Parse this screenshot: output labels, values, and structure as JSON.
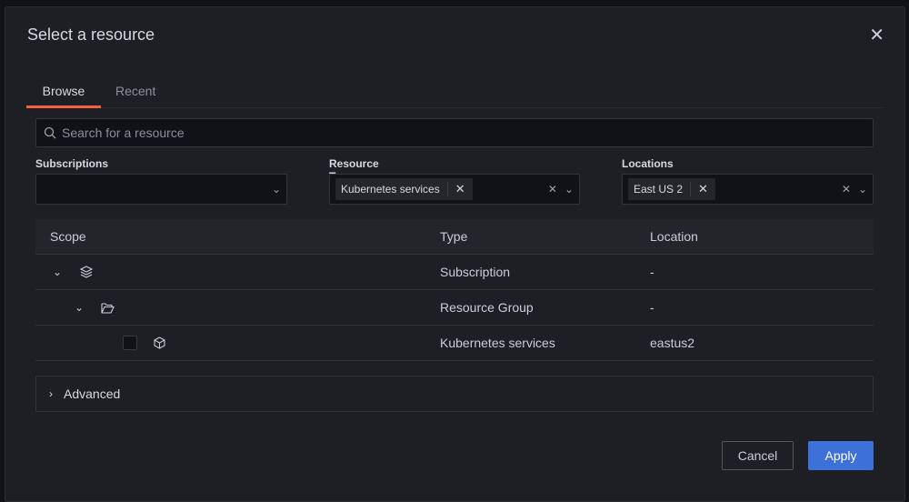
{
  "dialog": {
    "title": "Select a resource",
    "close_icon": "close-icon"
  },
  "tabs": [
    {
      "label": "Browse",
      "active": true
    },
    {
      "label": "Recent",
      "active": false
    }
  ],
  "search": {
    "placeholder": "Search for a resource",
    "value": ""
  },
  "filters": {
    "subscriptions": {
      "label": "Subscriptions",
      "chips": []
    },
    "resource_types": {
      "label": "Resource Types",
      "chips": [
        "Kubernetes services"
      ]
    },
    "locations": {
      "label": "Locations",
      "chips": [
        "East US 2"
      ]
    }
  },
  "table": {
    "headers": [
      "Scope",
      "Type",
      "Location"
    ],
    "rows": [
      {
        "scope": "",
        "type": "Subscription",
        "location": "-",
        "icon": "layers-icon",
        "expanded": true
      },
      {
        "scope": "",
        "type": "Resource Group",
        "location": "-",
        "icon": "folder-open-icon",
        "expanded": true
      },
      {
        "scope": "",
        "type": "Kubernetes services",
        "location": "eastus2",
        "icon": "cube-icon",
        "checked": false
      }
    ]
  },
  "advanced": {
    "label": "Advanced"
  },
  "buttons": {
    "cancel": "Cancel",
    "apply": "Apply"
  },
  "colors": {
    "accent_tab": "#f55f3e",
    "primary_button": "#3d71d9"
  }
}
